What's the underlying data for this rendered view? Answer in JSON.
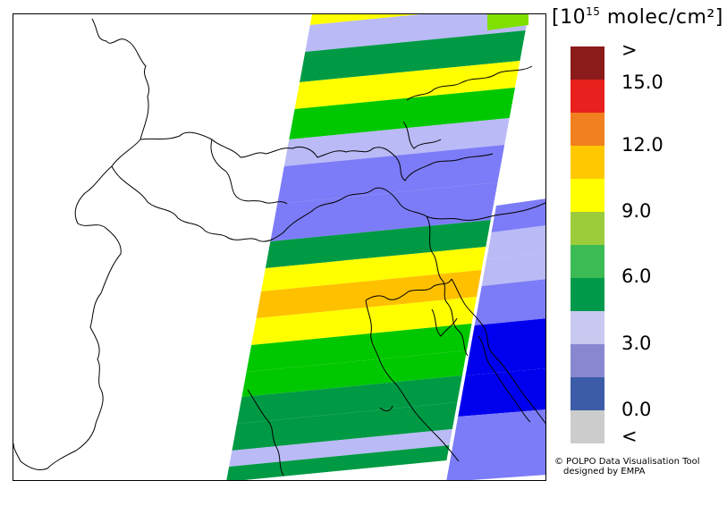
{
  "legend": {
    "unit_prefix": "[10",
    "unit_exponent": "15",
    "unit_suffix": " molec/cm²]",
    "swatches": [
      {
        "level": ">",
        "color": "#8b1a1a"
      },
      {
        "level": "15.0",
        "color": "#e8201e"
      },
      {
        "level": "",
        "color": "#f08020"
      },
      {
        "level": "12.0",
        "color": "#ffc800"
      },
      {
        "level": "",
        "color": "#ffff00"
      },
      {
        "level": "9.0",
        "color": "#9ccc3c"
      },
      {
        "level": "",
        "color": "#3cba54"
      },
      {
        "level": "6.0",
        "color": "#00994a"
      },
      {
        "level": "",
        "color": "#c8c8f0"
      },
      {
        "level": "3.0",
        "color": "#8888d0"
      },
      {
        "level": "",
        "color": "#3c5ca8"
      },
      {
        "level": "0.0",
        "color": "#cccccc"
      }
    ],
    "labels": [
      ">",
      "15.0",
      "12.0",
      "9.0",
      "6.0",
      "3.0",
      "0.0",
      "<"
    ]
  },
  "map": {
    "strip_colors": {
      "yellow": "#ffff00",
      "orange": "#ffc000",
      "light_green": "#00c800",
      "dark_green": "#009a44",
      "lavender": "#babaf6",
      "periwinkle": "#7c7cf8",
      "blue": "#0000ee",
      "bright_green": "#80e000"
    }
  },
  "credits": {
    "line1": "© POLPO Data Visualisation Tool",
    "line2": "designed by EMPA"
  }
}
